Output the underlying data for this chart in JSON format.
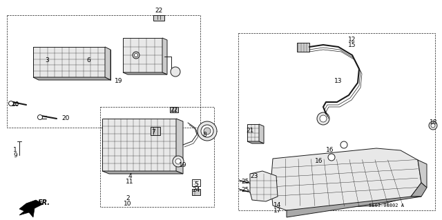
{
  "background_color": "#ffffff",
  "line_color": "#1a1a1a",
  "part_code": "SE03-00802 A",
  "gray_light": "#e8e8e8",
  "gray_mid": "#cccccc",
  "gray_dark": "#aaaaaa",
  "gray_lens": "#d0d0d0",
  "labels": [
    [
      "22",
      230,
      15
    ],
    [
      "3",
      68,
      88
    ],
    [
      "6",
      128,
      88
    ],
    [
      "19",
      172,
      117
    ],
    [
      "20",
      22,
      152
    ],
    [
      "20",
      95,
      172
    ],
    [
      "1",
      22,
      218
    ],
    [
      "9",
      22,
      226
    ],
    [
      "22",
      252,
      160
    ],
    [
      "7",
      222,
      192
    ],
    [
      "8",
      296,
      195
    ],
    [
      "19",
      265,
      240
    ],
    [
      "4",
      188,
      255
    ],
    [
      "11",
      188,
      263
    ],
    [
      "2",
      185,
      288
    ],
    [
      "10",
      185,
      296
    ],
    [
      "5",
      284,
      268
    ],
    [
      "24",
      284,
      276
    ],
    [
      "12",
      510,
      58
    ],
    [
      "15",
      510,
      66
    ],
    [
      "13",
      490,
      118
    ],
    [
      "18",
      628,
      178
    ],
    [
      "21",
      362,
      190
    ],
    [
      "16",
      478,
      218
    ],
    [
      "16",
      462,
      233
    ],
    [
      "23",
      368,
      255
    ],
    [
      "25",
      355,
      263
    ],
    [
      "25",
      355,
      275
    ],
    [
      "14",
      402,
      298
    ],
    [
      "17",
      402,
      306
    ]
  ]
}
